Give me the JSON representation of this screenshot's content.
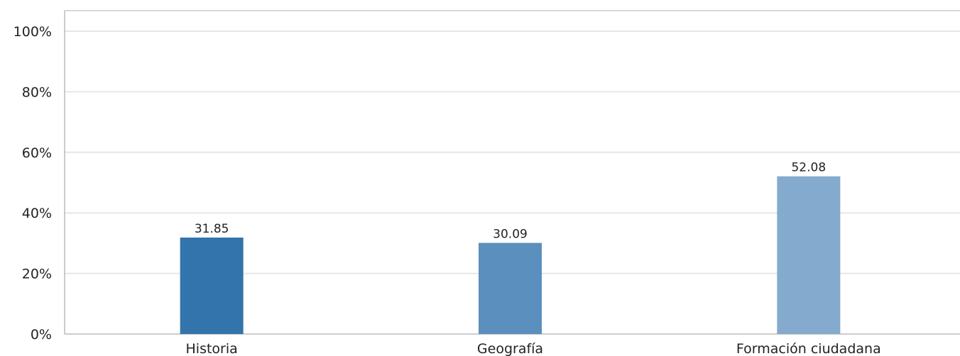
{
  "chart_data": {
    "type": "bar",
    "categories": [
      "Historia",
      "Geografía",
      "Formación ciudadana"
    ],
    "values": [
      31.85,
      30.09,
      52.08
    ],
    "data_labels": [
      "31.85",
      "30.09",
      "52.08"
    ],
    "colors": [
      "#3274ab",
      "#5b8fbd",
      "#84aacd"
    ],
    "y_ticks": [
      0,
      20,
      40,
      60,
      80,
      100
    ],
    "y_tick_labels": [
      "0%",
      "20%",
      "40%",
      "60%",
      "80%",
      "100%"
    ],
    "ylim": [
      0,
      100
    ],
    "grid": true,
    "title": "",
    "xlabel": "",
    "ylabel": ""
  }
}
